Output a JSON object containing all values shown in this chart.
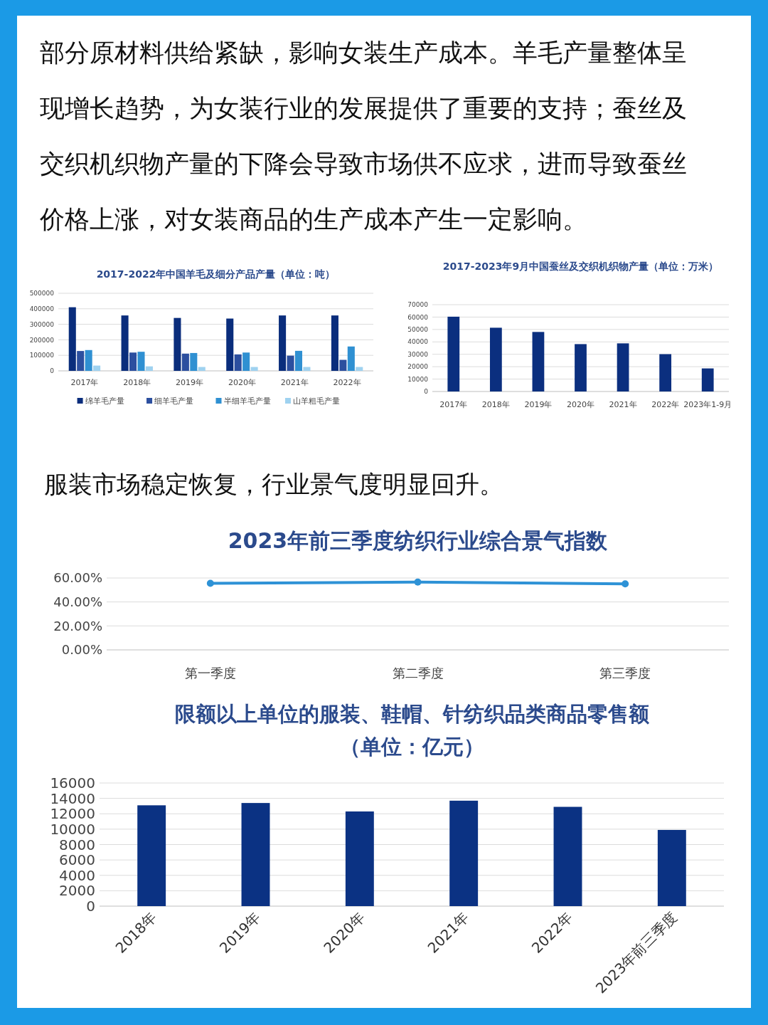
{
  "chart_data": [
    {
      "type": "other",
      "annotations": [
        "部分原材料供给紧缺，影响女装生产成本。羊毛产量整体呈现增长趋势，为女装行业的发展提供了重要的支持；蚕丝及交织机织物产量的下降会导致市场供不应求，进而导致蚕丝价格上涨，对女装商品的生产成本产生一定影响。"
      ]
    },
    {
      "type": "bar",
      "title": "2017-2022年中国羊毛及细分产品产量（单位：吨）",
      "categories": [
        "2017年",
        "2018年",
        "2019年",
        "2020年",
        "2021年",
        "2022年"
      ],
      "series": [
        {
          "name": "绵羊毛产量",
          "color": "#0a2d7c",
          "values": [
            410000,
            357000,
            341000,
            337000,
            357000,
            357000
          ]
        },
        {
          "name": "细羊毛产量",
          "color": "#2c4f9f",
          "values": [
            128000,
            118000,
            111000,
            106000,
            98000,
            71000
          ]
        },
        {
          "name": "半细羊毛产量",
          "color": "#2f90d2",
          "values": [
            134000,
            123000,
            115000,
            118000,
            129000,
            157000
          ]
        },
        {
          "name": "山羊粗毛产量",
          "color": "#9fd2f0",
          "values": [
            34000,
            29000,
            25000,
            25000,
            25000,
            25000
          ]
        }
      ],
      "ylim": [
        0,
        500000
      ],
      "yticks": [
        0,
        100000,
        200000,
        300000,
        400000,
        500000
      ],
      "grid": true,
      "legend": "bottom"
    },
    {
      "type": "bar",
      "title": "2017-2023年9月中国蚕丝及交织机织物产量（单位：万米）",
      "categories": [
        "2017年",
        "2018年",
        "2019年",
        "2020年",
        "2021年",
        "2022年",
        "2023年1-9月"
      ],
      "values": [
        60300,
        51400,
        48000,
        38200,
        38800,
        30100,
        18600
      ],
      "color": "#0b2f7f",
      "ylim": [
        0,
        70000
      ],
      "yticks": [
        0,
        10000,
        20000,
        30000,
        40000,
        50000,
        60000,
        70000
      ],
      "grid": true
    },
    {
      "type": "other",
      "annotations": [
        "服装市场稳定恢复，行业景气度明显回升。"
      ]
    },
    {
      "type": "line",
      "title": "2023年前三季度纺织行业综合景气指数",
      "categories": [
        "第一季度",
        "第二季度",
        "第三季度"
      ],
      "values": [
        55.5,
        56.6,
        55.1
      ],
      "color": "#2e92d6",
      "marker": "circle",
      "ylim": [
        0,
        60
      ],
      "yticks": [
        {
          "value": 0,
          "label": "0.00%"
        },
        {
          "value": 20,
          "label": "20.00%"
        },
        {
          "value": 40,
          "label": "40.00%"
        },
        {
          "value": 60,
          "label": "60.00%"
        }
      ],
      "grid": true
    },
    {
      "type": "bar",
      "title": "限额以上单位的服装、鞋帽、针纺织品类商品零售额（单位：亿元）",
      "categories": [
        "2018年",
        "2019年",
        "2020年",
        "2021年",
        "2022年",
        "2023年前三季度"
      ],
      "values": [
        13100,
        13400,
        12300,
        13700,
        12900,
        9900
      ],
      "color": "#0b3283",
      "ylim": [
        0,
        16000
      ],
      "yticks": [
        0,
        2000,
        4000,
        6000,
        8000,
        10000,
        12000,
        14000,
        16000
      ],
      "grid": true
    }
  ]
}
